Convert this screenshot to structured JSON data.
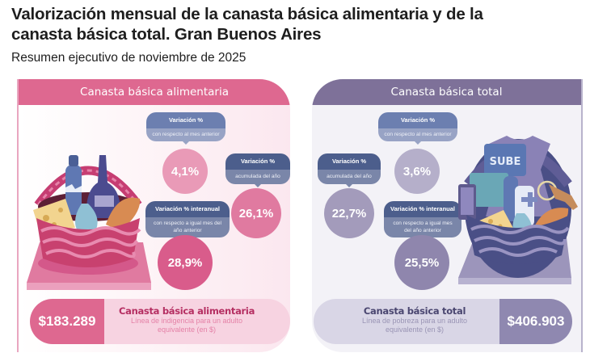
{
  "header": {
    "title": "Valorización mensual de la canasta básica alimentaria y de la canasta básica total. Gran Buenos Aires",
    "subtitle": "Resumen ejecutivo de noviembre de 2025"
  },
  "cba": {
    "title": "Canasta básica alimentaria",
    "accent": "#de6890",
    "monthly": {
      "label": "Variación %",
      "sub": "con respecto al mes anterior",
      "value": "4,1%"
    },
    "ytd": {
      "label": "Variación %",
      "sub": "acumulada del año",
      "value": "26,1%"
    },
    "yoy": {
      "label": "Variación % interanual",
      "sub": "con respecto a igual mes del año anterior",
      "value": "28,9%"
    },
    "price": "$183.289",
    "line_title": "Canasta básica alimentaria",
    "line_sub": "Línea de indigencia para un adulto equivalente (en $)",
    "illustration": "food-basket-icon"
  },
  "cbt": {
    "title": "Canasta básica total",
    "accent": "#7e7199",
    "monthly": {
      "label": "Variación %",
      "sub": "con respecto al mes anterior",
      "value": "3,6%"
    },
    "ytd": {
      "label": "Variación %",
      "sub": "acumulada del año",
      "value": "22,7%"
    },
    "yoy": {
      "label": "Variación % interanual",
      "sub": "con respecto a igual mes del año anterior",
      "value": "25,5%"
    },
    "price": "$406.903",
    "line_title": "Canasta básica total",
    "line_sub": "Línea de pobreza para un adulto equivalente (en $)",
    "illustration": "total-basket-icon",
    "card_text": "SUBE"
  }
}
